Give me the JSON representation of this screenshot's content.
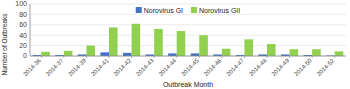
{
  "chart_data": {
    "type": "bar",
    "categories": [
      "2014-36",
      "2014-37",
      "2014-39",
      "2014-41",
      "2014-42",
      "2014-43",
      "2014-44",
      "2014-45",
      "2014-46",
      "2014-47",
      "2014-48",
      "2014-49",
      "2014-50",
      "2014-52"
    ],
    "series": [
      {
        "name": "Norovirus GI",
        "color": "#4472c4",
        "values": [
          2,
          2,
          3,
          7,
          6,
          3,
          5,
          5,
          3,
          2,
          3,
          3,
          2,
          1
        ]
      },
      {
        "name": "Norovirus GII",
        "color": "#92d050",
        "values": [
          8,
          10,
          20,
          55,
          62,
          52,
          48,
          40,
          14,
          32,
          23,
          13,
          13,
          9
        ]
      }
    ],
    "xlabel": "Outbreak Month",
    "ylabel": "Number of Outbreaks",
    "ylim": [
      0,
      100
    ],
    "yticks": [
      0,
      20,
      40,
      60,
      80,
      100
    ],
    "grid": true,
    "legend": "top"
  }
}
